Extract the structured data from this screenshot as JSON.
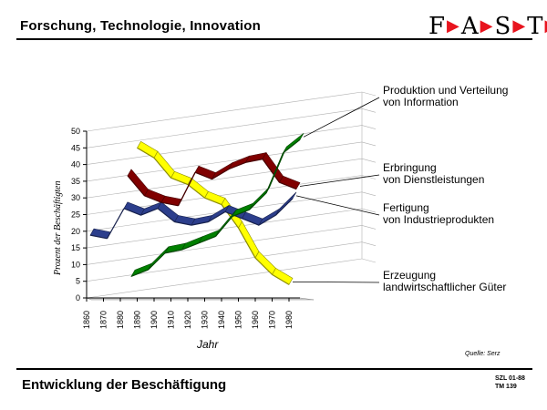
{
  "header": {
    "title": "Forschung, Technologie, Innovation",
    "logo_letters": [
      "F",
      "A",
      "S",
      "T"
    ]
  },
  "footer": {
    "title": "Entwicklung der Beschäftigung",
    "code_line1": "SZL 01-88",
    "code_line2": "TM 139"
  },
  "chart_data": {
    "type": "line",
    "style": "3d-ribbon",
    "xlabel": "Jahr",
    "ylabel": "Prozent der Beschäftigten",
    "source": "Quelle: Serz",
    "ylim": [
      0,
      50
    ],
    "yticks": [
      0,
      5,
      10,
      15,
      20,
      25,
      30,
      35,
      40,
      45,
      50
    ],
    "x": [
      1860,
      1870,
      1880,
      1890,
      1900,
      1910,
      1920,
      1930,
      1940,
      1950,
      1960,
      1970,
      1980
    ],
    "grid": true,
    "series": [
      {
        "name": "Erzeugung landwirtschaftlicher Güter",
        "color": "#ffff00",
        "values": [
          null,
          null,
          null,
          45,
          42,
          36,
          34,
          30,
          28,
          21,
          12,
          7,
          4
        ]
      },
      {
        "name": "Fertigung von Industrieprodukten",
        "color": "#2c3e8c",
        "values": [
          18,
          17,
          26,
          24,
          26,
          22,
          21,
          22,
          25,
          23,
          21,
          24,
          29
        ]
      },
      {
        "name": "Erbringung von Dienstleistungen",
        "color": "#800000",
        "values": [
          null,
          null,
          35,
          29,
          27,
          26,
          36,
          34,
          37,
          39,
          40,
          33,
          31
        ]
      },
      {
        "name": "Produktion und Verteilung von Information",
        "color": "#008000",
        "values": [
          null,
          null,
          4,
          6,
          11,
          12,
          14,
          16,
          22,
          24,
          29,
          41,
          45
        ]
      }
    ]
  }
}
